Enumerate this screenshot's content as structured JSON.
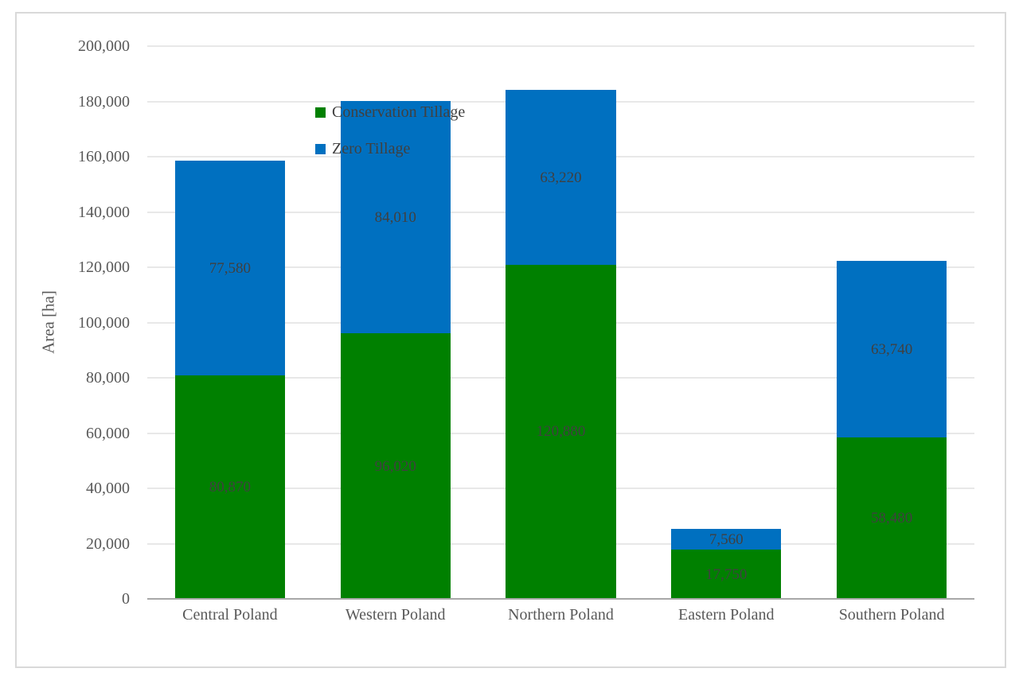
{
  "chart_data": {
    "type": "bar",
    "stacked": true,
    "title": "",
    "ylabel": "Area [ha]",
    "xlabel": "",
    "categories": [
      "Central Poland",
      "Western Poland",
      "Northern Poland",
      "Eastern Poland",
      "Southern Poland"
    ],
    "series": [
      {
        "name": "Conservation Tillage",
        "color": "#008000",
        "values": [
          80870,
          96020,
          120880,
          17750,
          58480
        ]
      },
      {
        "name": "Zero Tillage",
        "color": "#0070C0",
        "values": [
          77580,
          84010,
          63220,
          7560,
          63740
        ]
      }
    ],
    "ylim": [
      0,
      200000
    ],
    "yticks": [
      0,
      20000,
      40000,
      60000,
      80000,
      100000,
      120000,
      140000,
      160000,
      180000,
      200000
    ],
    "grid": true,
    "data_labels": true,
    "legend_position": "top-left-inside"
  }
}
